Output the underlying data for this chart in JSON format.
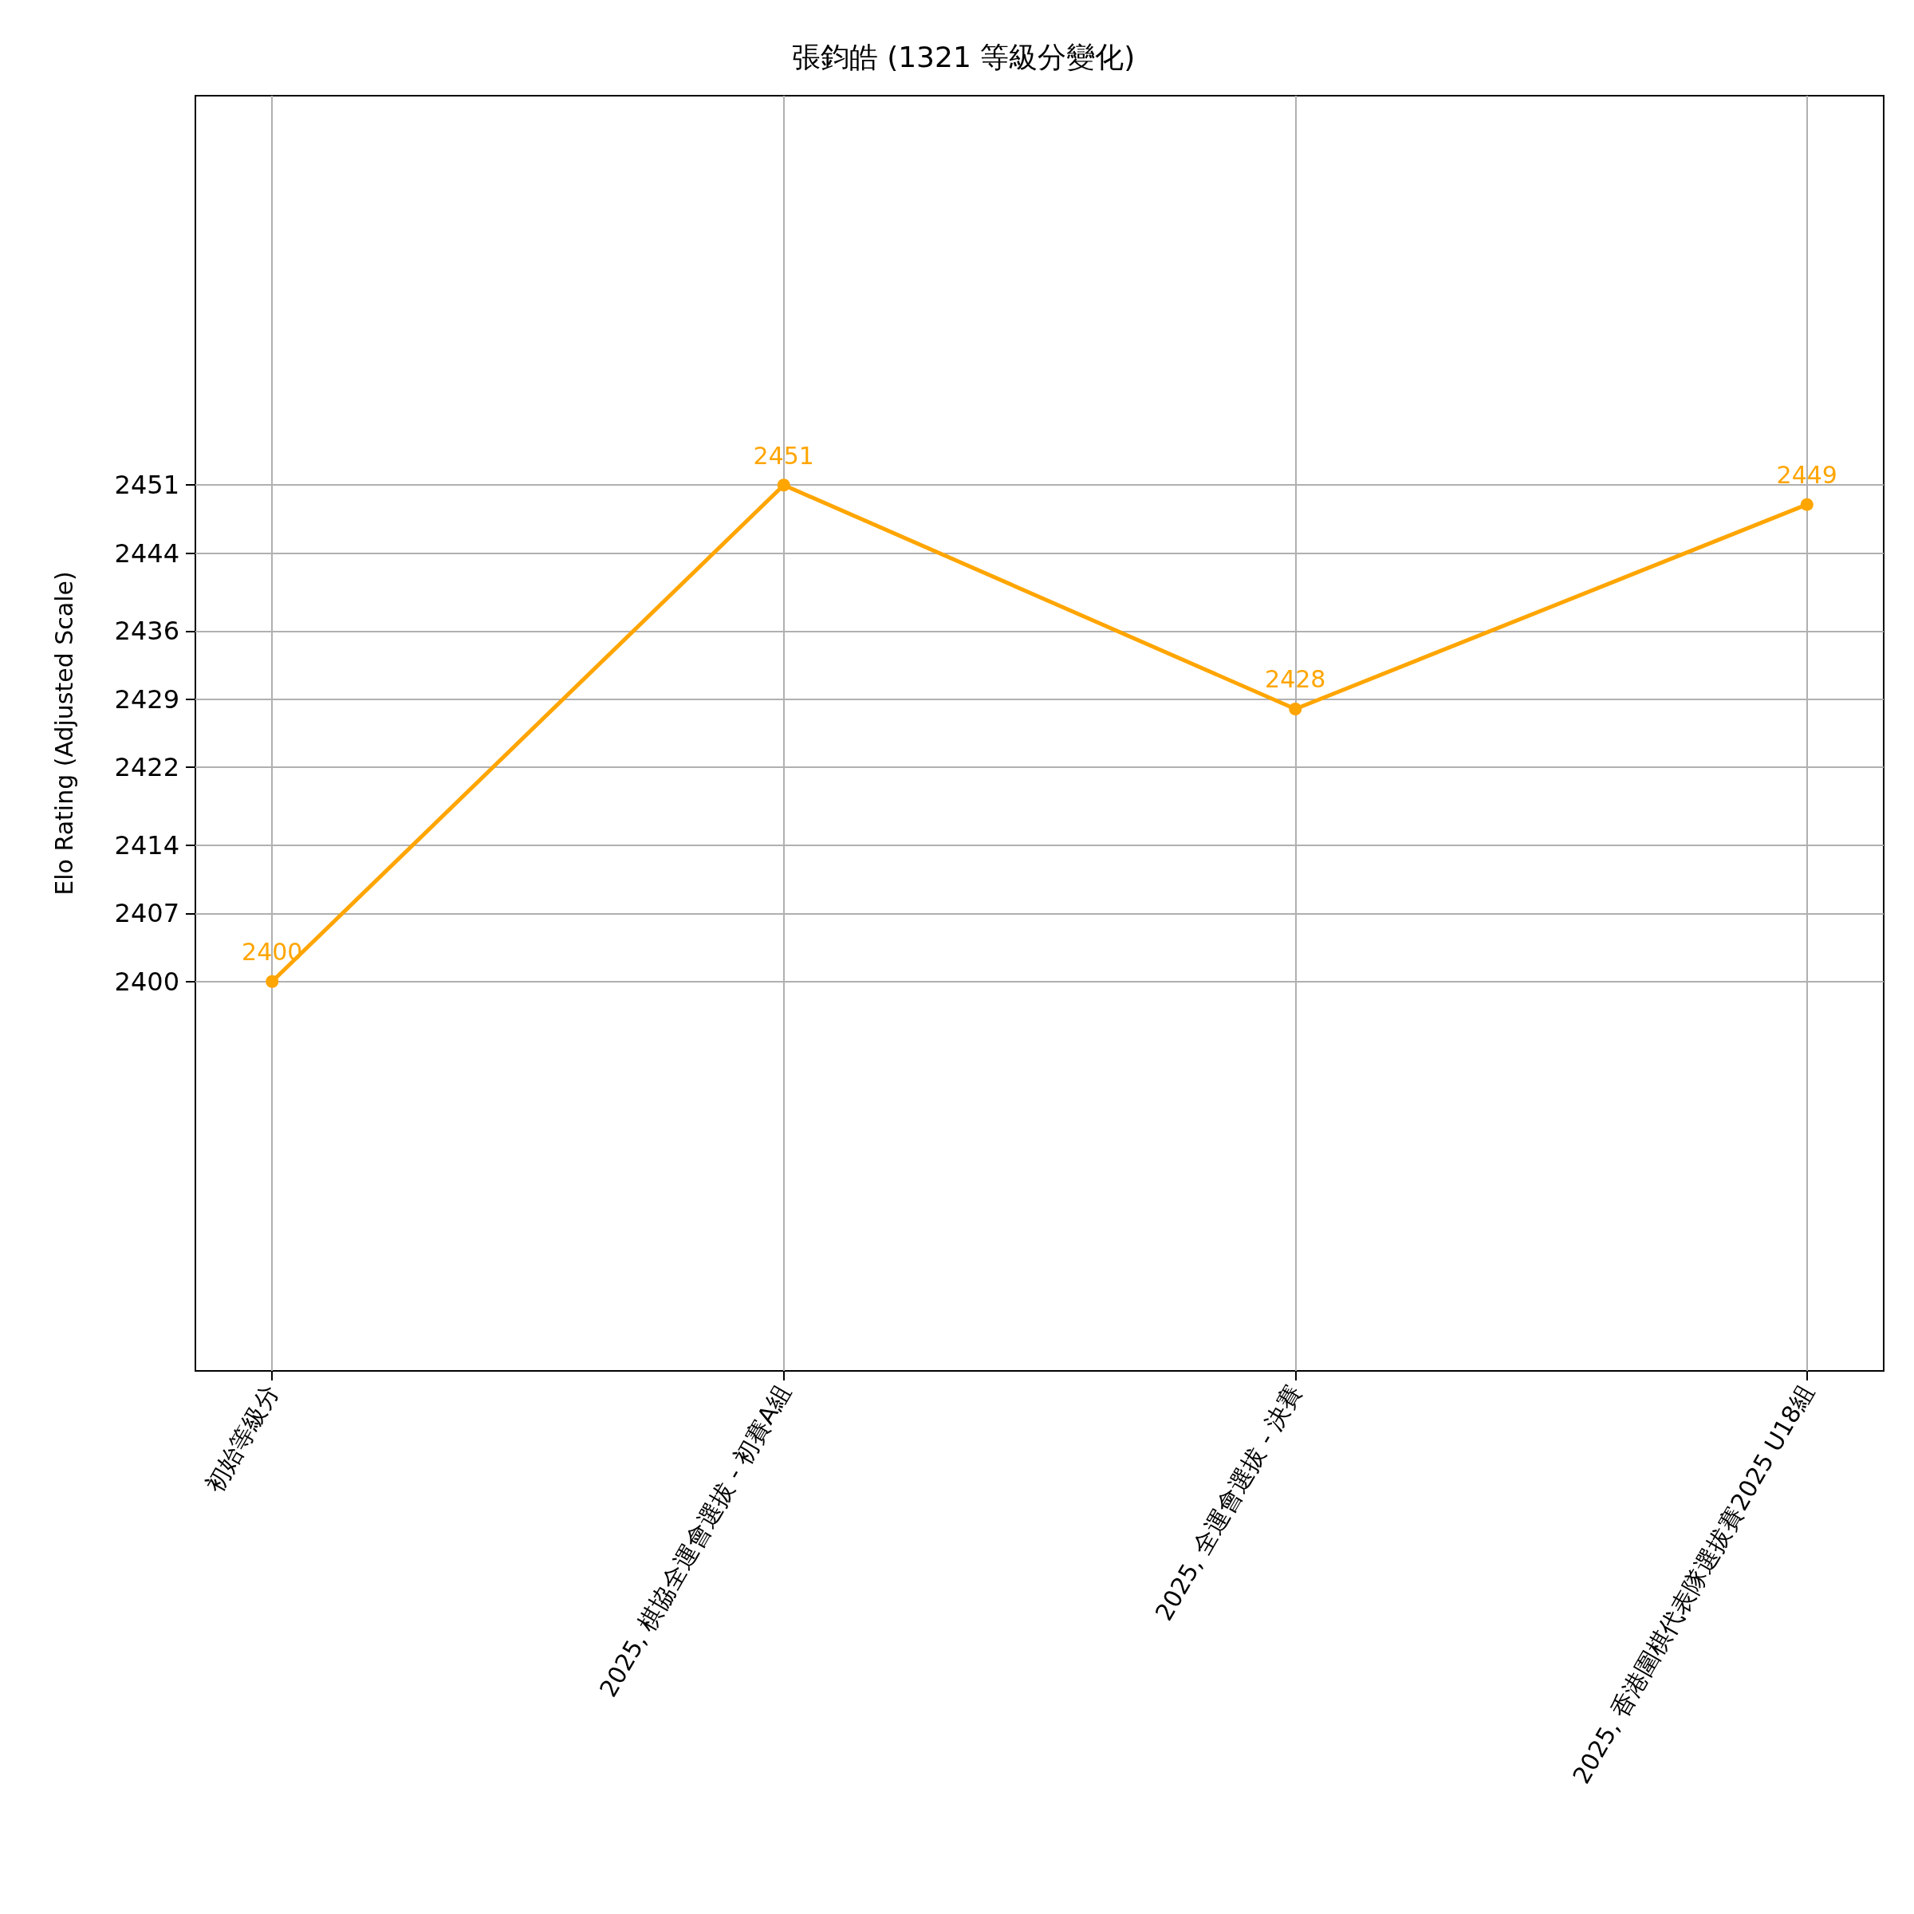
{
  "chart_data": {
    "type": "line",
    "title": "張鈞皓 (1321 等級分變化)",
    "ylabel": "Elo Rating (Adjusted Scale)",
    "categories": [
      "初始等級分",
      "2025, 棋協全運會選拔 - 初賽A組",
      "2025, 全運會選拔 - 決賽",
      "2025, 香港圍棋代表隊選拔賽2025 U18組"
    ],
    "series": [
      {
        "color": "#ffa500",
        "values": [
          2400,
          2451,
          2428,
          2449
        ]
      }
    ],
    "ylim": [
      2360,
      2491
    ],
    "yticks": [
      2400,
      2407,
      2414,
      2422,
      2429,
      2436,
      2444,
      2451
    ],
    "grid": true,
    "marker": "circle",
    "line_style": "solid",
    "data_labels": true
  }
}
